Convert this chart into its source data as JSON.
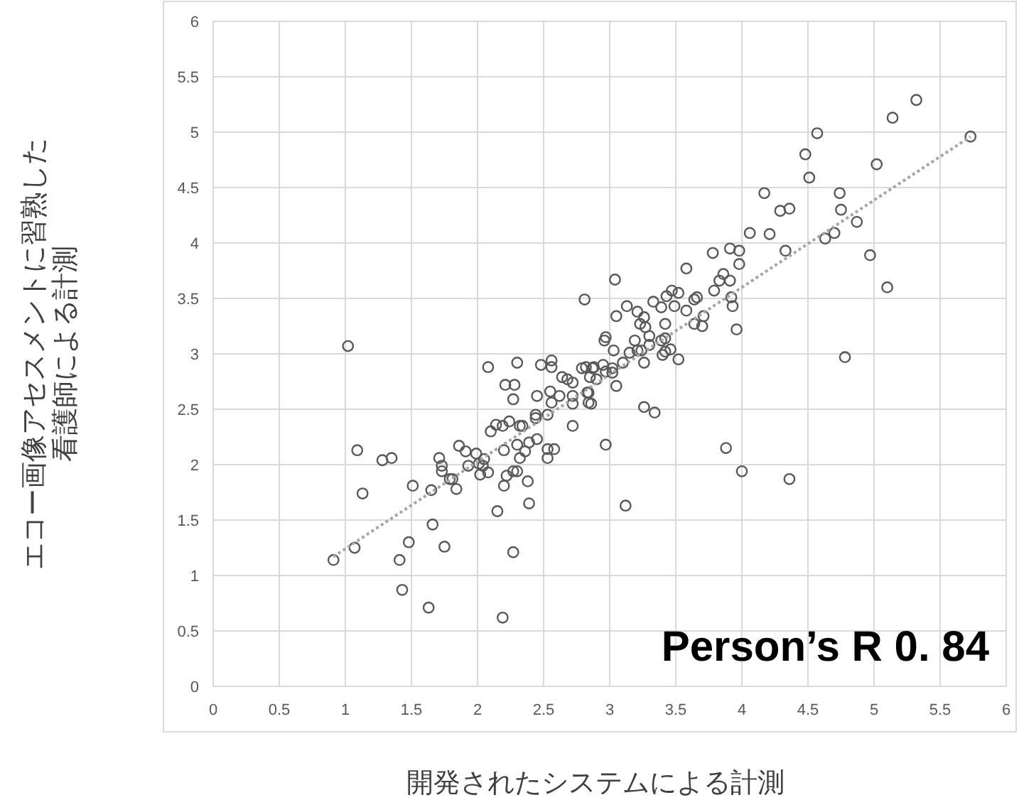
{
  "chart_data": {
    "type": "scatter",
    "xlabel": "開発されたシステムによる計測",
    "ylabel": "エコー画像アセスメントに習熟した看護師による計測",
    "annotations": [
      "Person’s R 0. 84"
    ],
    "xlim": [
      0,
      6
    ],
    "ylim": [
      0,
      6
    ],
    "xticks": [
      0,
      0.5,
      1,
      1.5,
      2,
      2.5,
      3,
      3.5,
      4,
      4.5,
      5,
      5.5,
      6
    ],
    "yticks": [
      0,
      0.5,
      1,
      1.5,
      2,
      2.5,
      3,
      3.5,
      4,
      4.5,
      5,
      5.5,
      6
    ],
    "grid": true,
    "series": [
      {
        "color": "#595959",
        "marker": "circle",
        "x": [
          0.91,
          1.02,
          1.07,
          1.09,
          1.13,
          1.28,
          1.35,
          1.41,
          1.43,
          1.48,
          1.51,
          1.63,
          1.65,
          1.66,
          1.71,
          1.73,
          1.73,
          1.75,
          1.79,
          1.81,
          1.84,
          1.86,
          1.91,
          1.93,
          1.99,
          2.01,
          2.02,
          2.04,
          2.05,
          2.08,
          2.08,
          2.1,
          2.14,
          2.15,
          2.19,
          2.19,
          2.2,
          2.2,
          2.22,
          2.21,
          2.24,
          2.27,
          2.28,
          2.27,
          2.27,
          2.3,
          2.3,
          2.3,
          2.32,
          2.32,
          2.34,
          2.36,
          2.38,
          2.39,
          2.39,
          2.44,
          2.44,
          2.45,
          2.45,
          2.48,
          2.53,
          2.53,
          2.53,
          2.55,
          2.56,
          2.56,
          2.56,
          2.58,
          2.62,
          2.64,
          2.68,
          2.72,
          2.72,
          2.72,
          2.72,
          2.79,
          2.82,
          2.84,
          2.84,
          2.85,
          2.86,
          2.87,
          2.83,
          2.88,
          2.9,
          2.95,
          2.97,
          2.97,
          3.02,
          3.02,
          3.03,
          3.05,
          3.1,
          3.12,
          3.15,
          3.21,
          3.24,
          3.26,
          3.26,
          3.3,
          3.34,
          3.4,
          3.42,
          3.46,
          3.52,
          3.88,
          4.0,
          4.36,
          4.78,
          2.81,
          3.04,
          3.05,
          3.13,
          3.21,
          3.23,
          3.26,
          3.27,
          3.33,
          3.3,
          3.39,
          3.42,
          3.43,
          3.47,
          3.52,
          3.49,
          3.42,
          3.39,
          3.19,
          2.97,
          2.96,
          3.58,
          3.58,
          3.64,
          3.66,
          3.64,
          3.71,
          3.7,
          3.78,
          3.79,
          3.83,
          3.86,
          3.91,
          3.92,
          3.93,
          3.96,
          3.98,
          3.98,
          3.91,
          4.06,
          4.17,
          4.21,
          4.29,
          4.36,
          4.33,
          4.48,
          4.51,
          4.57,
          4.63,
          4.7,
          4.74,
          4.75,
          4.87,
          4.97,
          5.02,
          5.1,
          5.14,
          5.32,
          5.73
        ],
        "values": [
          1.14,
          3.07,
          1.25,
          2.13,
          1.74,
          2.04,
          2.06,
          1.14,
          0.87,
          1.3,
          1.81,
          0.71,
          1.77,
          1.46,
          2.06,
          1.99,
          1.94,
          1.26,
          1.87,
          1.87,
          1.78,
          2.17,
          2.12,
          1.99,
          2.1,
          2.01,
          1.91,
          1.99,
          2.05,
          1.93,
          2.88,
          2.3,
          2.36,
          1.58,
          0.62,
          2.35,
          2.13,
          1.81,
          1.9,
          2.72,
          2.39,
          2.59,
          2.72,
          1.21,
          1.94,
          1.94,
          2.92,
          2.18,
          2.06,
          2.35,
          2.35,
          2.12,
          1.85,
          1.65,
          2.2,
          2.42,
          2.45,
          2.62,
          2.23,
          2.9,
          2.45,
          2.06,
          2.14,
          2.66,
          2.94,
          2.88,
          2.56,
          2.14,
          2.62,
          2.79,
          2.77,
          2.74,
          2.62,
          2.55,
          2.35,
          2.87,
          2.88,
          2.65,
          2.56,
          2.79,
          2.55,
          2.87,
          2.65,
          2.88,
          2.77,
          2.9,
          2.18,
          2.84,
          2.87,
          2.83,
          3.03,
          2.71,
          2.92,
          1.63,
          3.01,
          3.03,
          3.03,
          2.92,
          2.52,
          3.08,
          2.47,
          2.99,
          3.02,
          3.04,
          2.95,
          2.15,
          1.94,
          1.87,
          2.97,
          3.49,
          3.67,
          3.34,
          3.43,
          3.38,
          3.27,
          3.33,
          3.24,
          3.47,
          3.16,
          3.42,
          3.27,
          3.52,
          3.57,
          3.55,
          3.43,
          3.14,
          3.12,
          3.12,
          3.15,
          3.12,
          3.77,
          3.39,
          3.49,
          3.51,
          3.27,
          3.34,
          3.25,
          3.91,
          3.57,
          3.66,
          3.72,
          3.95,
          3.51,
          3.43,
          3.22,
          3.93,
          3.81,
          3.66,
          4.09,
          4.45,
          4.08,
          4.29,
          4.31,
          3.93,
          4.8,
          4.59,
          4.99,
          4.04,
          4.09,
          4.45,
          4.3,
          4.19,
          3.89,
          4.71,
          3.6,
          5.13,
          5.29,
          4.96
        ]
      },
      {
        "type": "line",
        "color": "#a6a6a6",
        "line_style": "dotted",
        "marker": "none",
        "x": [
          0.91,
          5.73
        ],
        "values": [
          1.17,
          4.96
        ]
      }
    ]
  }
}
